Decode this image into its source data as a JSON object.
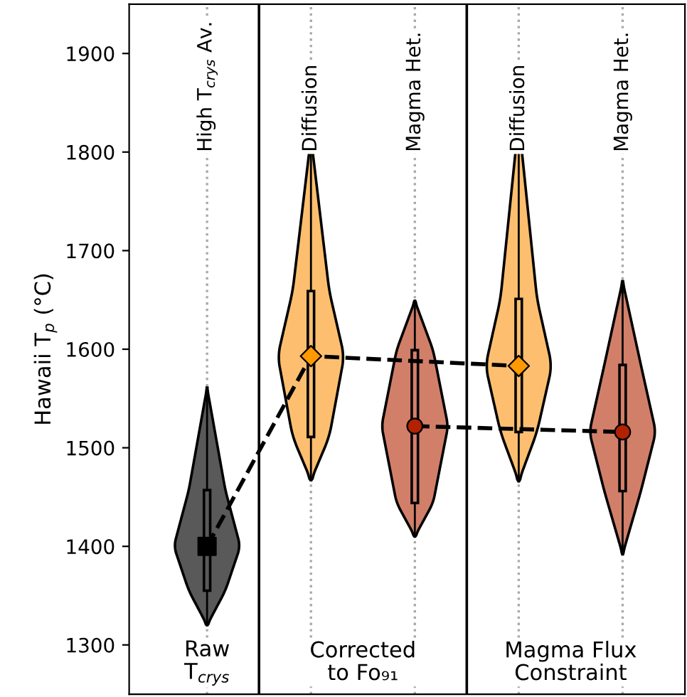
{
  "chart_data": {
    "type": "box",
    "categories": [
      "High T$_{crys}$ Av.",
      "Diffusion",
      "Magma Het.",
      "Diffusion",
      "Magma Het."
    ],
    "ylabel": "Hawaii T$_{p}$ (°C)",
    "ylim": [
      1250,
      1950
    ],
    "yticks": [
      1300,
      1400,
      1500,
      1600,
      1700,
      1800,
      1900
    ],
    "grid": "x",
    "colors": [
      "#595959",
      "#fdbf6f",
      "#d27f6a",
      "#fdbf6f",
      "#d27f6a"
    ],
    "boxes": [
      {
        "low": 1320,
        "q1": 1355,
        "median": 1400,
        "q3": 1457,
        "high": 1561
      },
      {
        "low": 1467,
        "q1": 1511,
        "median": 1593,
        "q3": 1659,
        "high": 1815
      },
      {
        "low": 1410,
        "q1": 1444,
        "median": 1522,
        "q3": 1599,
        "high": 1649
      },
      {
        "low": 1466,
        "q1": 1516,
        "median": 1583,
        "q3": 1651,
        "high": 1832
      },
      {
        "low": 1392,
        "q1": 1456,
        "median": 1516,
        "q3": 1584,
        "high": 1669
      }
    ],
    "series": [
      {
        "type": "line",
        "color": "#000000",
        "line_style": "dashed",
        "values": [
          1400,
          1593,
          null,
          1583,
          null
        ]
      },
      {
        "type": "line",
        "color": "#000000",
        "line_style": "dashed",
        "values": [
          null,
          null,
          1522,
          null,
          1516
        ]
      },
      {
        "type": "scatter",
        "color": "#000000",
        "marker": "square",
        "x": [
          "High T$_{crys}$ Av."
        ],
        "values": [
          1400
        ]
      },
      {
        "type": "scatter",
        "color": "#ff9900",
        "marker": "diamond",
        "values": [
          null,
          1593,
          null,
          1583,
          null
        ]
      },
      {
        "type": "scatter",
        "color": "#b22200",
        "marker": "circle",
        "values": [
          null,
          null,
          1522,
          null,
          1516
        ]
      }
    ],
    "annotations": [
      "Raw\nT$_{crys}$",
      "Corrected\nto Fo₉₁",
      "Magma Flux\nConstraint"
    ]
  }
}
